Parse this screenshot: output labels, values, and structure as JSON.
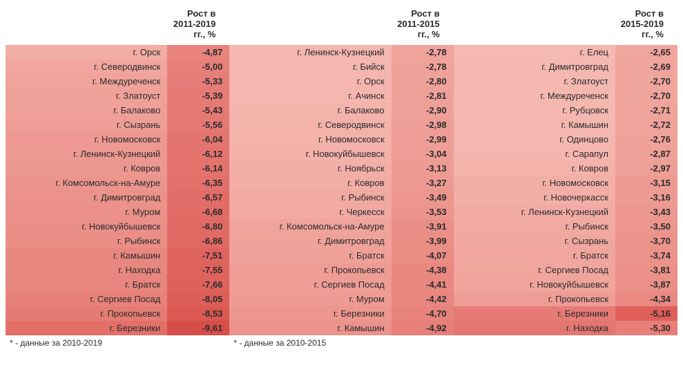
{
  "columns": [
    {
      "header_city": "",
      "header_val": "Рост в\n2011-2019\nгг., %",
      "footnote": "* - данные за 2010-2019",
      "rows": [
        {
          "city": "г. Орск",
          "value": "-4,87",
          "city_bg": "#f2ada4",
          "val_bg": "#e8837e"
        },
        {
          "city": "г. Северодвинск",
          "value": "-5,00",
          "city_bg": "#f0a69e",
          "val_bg": "#e77f7a"
        },
        {
          "city": "г. Междуреченск",
          "value": "-5,33",
          "city_bg": "#efa39b",
          "val_bg": "#e77d78"
        },
        {
          "city": "г. Златоуст",
          "value": "-5,39",
          "city_bg": "#efa199",
          "val_bg": "#e67b76"
        },
        {
          "city": "г. Балаково",
          "value": "-5,43",
          "city_bg": "#efa098",
          "val_bg": "#e67a75"
        },
        {
          "city": "г. Сызрань",
          "value": "-5,56",
          "city_bg": "#ee9e96",
          "val_bg": "#e57873"
        },
        {
          "city": "г. Новомосковск",
          "value": "-6,04",
          "city_bg": "#ed9991",
          "val_bg": "#e4746f"
        },
        {
          "city": "г. Ленинск-Кузнецкий",
          "value": "-6,12",
          "city_bg": "#ed9890",
          "val_bg": "#e4736e"
        },
        {
          "city": "г. Ковров",
          "value": "-6,14",
          "city_bg": "#ec978f",
          "val_bg": "#e4726d"
        },
        {
          "city": "г. Комсомольск-на-Амуре",
          "value": "-6,35",
          "city_bg": "#ec958d",
          "val_bg": "#e3706b"
        },
        {
          "city": "г. Димитровград",
          "value": "-6,57",
          "city_bg": "#eb928a",
          "val_bg": "#e26d68"
        },
        {
          "city": "г. Муром",
          "value": "-6,68",
          "city_bg": "#eb9189",
          "val_bg": "#e26c67"
        },
        {
          "city": "г. Новокуйбышевск",
          "value": "-6,80",
          "city_bg": "#ea8f87",
          "val_bg": "#e16a65"
        },
        {
          "city": "г. Рыбинск",
          "value": "-6,86",
          "city_bg": "#ea8e86",
          "val_bg": "#e16964"
        },
        {
          "city": "г. Камышин",
          "value": "-7,51",
          "city_bg": "#e88780",
          "val_bg": "#df635e"
        },
        {
          "city": "г. Находка",
          "value": "-7,55",
          "city_bg": "#e8877f",
          "val_bg": "#df625d"
        },
        {
          "city": "г. Братск",
          "value": "-7,66",
          "city_bg": "#e8857e",
          "val_bg": "#de615c"
        },
        {
          "city": "г. Сергиев Посад",
          "value": "-8,05",
          "city_bg": "#e7817a",
          "val_bg": "#dd5d58"
        },
        {
          "city": "г. Прокопьевск",
          "value": "-8,53",
          "city_bg": "#e57c74",
          "val_bg": "#db5853"
        },
        {
          "city": "г. Березники",
          "value": "-9,61",
          "city_bg": "#e27069",
          "val_bg": "#d74d48"
        }
      ]
    },
    {
      "header_city": "",
      "header_val": "Рост в\n2011-2015\nгг., %",
      "footnote": "* - данные за 2010-2015",
      "rows": [
        {
          "city": "г. Ленинск-Кузнецкий",
          "value": "-2,78",
          "city_bg": "#f4b7af",
          "val_bg": "#efa39b"
        },
        {
          "city": "г. Бийск",
          "value": "-2,78",
          "city_bg": "#f4b7af",
          "val_bg": "#efa29a"
        },
        {
          "city": "г. Орск",
          "value": "-2,80",
          "city_bg": "#f4b6ae",
          "val_bg": "#efa29a"
        },
        {
          "city": "г. Ачинск",
          "value": "-2,81",
          "city_bg": "#f4b6ae",
          "val_bg": "#efa199"
        },
        {
          "city": "г. Балаково",
          "value": "-2,90",
          "city_bg": "#f3b4ac",
          "val_bg": "#eea098"
        },
        {
          "city": "г. Северодвинск",
          "value": "-2,98",
          "city_bg": "#f3b2aa",
          "val_bg": "#ee9e96"
        },
        {
          "city": "г. Новомосковск",
          "value": "-2,99",
          "city_bg": "#f3b2aa",
          "val_bg": "#ee9e96"
        },
        {
          "city": "г. Новокуйбышевск",
          "value": "-3,04",
          "city_bg": "#f3b1a9",
          "val_bg": "#ee9d95"
        },
        {
          "city": "г. Ноябрьск",
          "value": "-3,13",
          "city_bg": "#f2afa7",
          "val_bg": "#ed9b93"
        },
        {
          "city": "г. Ковров",
          "value": "-3,27",
          "city_bg": "#f2ada5",
          "val_bg": "#ed9991"
        },
        {
          "city": "г. Рыбинск",
          "value": "-3,49",
          "city_bg": "#f1aaa2",
          "val_bg": "#ec968e"
        },
        {
          "city": "г. Черкесск",
          "value": "-3,53",
          "city_bg": "#f1a9a1",
          "val_bg": "#ec958d"
        },
        {
          "city": "г. Комсомольск-на-Амуре",
          "value": "-3,91",
          "city_bg": "#f0a39c",
          "val_bg": "#ea8f88"
        },
        {
          "city": "г. Димитровград",
          "value": "-3,99",
          "city_bg": "#efa29a",
          "val_bg": "#ea8e86"
        },
        {
          "city": "г. Братск",
          "value": "-4,07",
          "city_bg": "#efa199",
          "val_bg": "#ea8d85"
        },
        {
          "city": "г. Прокопьевск",
          "value": "-4,38",
          "city_bg": "#ee9c94",
          "val_bg": "#e98880"
        },
        {
          "city": "г. Сергиев Посад",
          "value": "-4,41",
          "city_bg": "#ee9c94",
          "val_bg": "#e88880"
        },
        {
          "city": "г. Муром",
          "value": "-4,42",
          "city_bg": "#ee9b93",
          "val_bg": "#e8877f"
        },
        {
          "city": "г. Березники",
          "value": "-4,70",
          "city_bg": "#ed978f",
          "val_bg": "#e7837b"
        },
        {
          "city": "г. Камышин",
          "value": "-4,92",
          "city_bg": "#ec948c",
          "val_bg": "#e78078"
        }
      ]
    },
    {
      "header_city": "",
      "header_val": "Рост в\n2015-2019\nгг., %",
      "footnote": "",
      "rows": [
        {
          "city": "г. Елец",
          "value": "-2,65",
          "city_bg": "#f4b9b1",
          "val_bg": "#f0a59d"
        },
        {
          "city": "г. Димитровград",
          "value": "-2,69",
          "city_bg": "#f4b8b0",
          "val_bg": "#efa49c"
        },
        {
          "city": "г. Златоуст",
          "value": "-2,70",
          "city_bg": "#f4b8b0",
          "val_bg": "#efa49c"
        },
        {
          "city": "г. Междуреченск",
          "value": "-2,70",
          "city_bg": "#f4b8b0",
          "val_bg": "#efa49c"
        },
        {
          "city": "г. Рубцовск",
          "value": "-2,71",
          "city_bg": "#f4b8b0",
          "val_bg": "#efa39b"
        },
        {
          "city": "г. Камышин",
          "value": "-2,72",
          "city_bg": "#f4b7af",
          "val_bg": "#efa39b"
        },
        {
          "city": "г. Одинцово",
          "value": "-2,76",
          "city_bg": "#f4b7af",
          "val_bg": "#efa29a"
        },
        {
          "city": "г. Сарапул",
          "value": "-2,87",
          "city_bg": "#f3b5ad",
          "val_bg": "#efa098"
        },
        {
          "city": "г. Ковров",
          "value": "-2,97",
          "city_bg": "#f3b3ab",
          "val_bg": "#ee9f97"
        },
        {
          "city": "г. Новомосковск",
          "value": "-3,15",
          "city_bg": "#f2afa7",
          "val_bg": "#ed9b93"
        },
        {
          "city": "г. Новочеркасск",
          "value": "-3,16",
          "city_bg": "#f2afa7",
          "val_bg": "#ed9b93"
        },
        {
          "city": "г. Ленинск-Кузнецкий",
          "value": "-3,43",
          "city_bg": "#f1aba3",
          "val_bg": "#ec978f"
        },
        {
          "city": "г. Рыбинск",
          "value": "-3,50",
          "city_bg": "#f1aaa2",
          "val_bg": "#ec968e"
        },
        {
          "city": "г. Сызрань",
          "value": "-3,70",
          "city_bg": "#f0a79f",
          "val_bg": "#eb938b"
        },
        {
          "city": "г. Братск",
          "value": "-3,74",
          "city_bg": "#f0a69e",
          "val_bg": "#eb928a"
        },
        {
          "city": "г. Сергиев Посад",
          "value": "-3,81",
          "city_bg": "#f0a59d",
          "val_bg": "#eb9189"
        },
        {
          "city": "г. Новокуйбышевск",
          "value": "-3,87",
          "city_bg": "#f0a49c",
          "val_bg": "#eb9088"
        },
        {
          "city": "г. Прокопьевск",
          "value": "-4,34",
          "city_bg": "#ee9d95",
          "val_bg": "#e98981"
        },
        {
          "city": "г. Березники",
          "value": "-5,16",
          "city_bg": "#e67b76",
          "val_bg": "#e05f5a"
        },
        {
          "city": "г. Находка",
          "value": "-5,30",
          "city_bg": "#e47671",
          "val_bg": "#e67f77"
        }
      ]
    }
  ]
}
